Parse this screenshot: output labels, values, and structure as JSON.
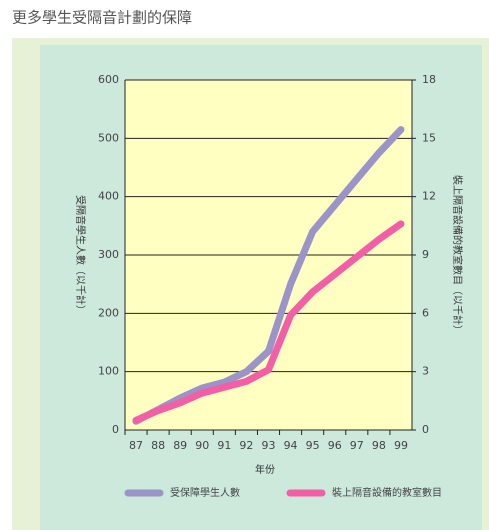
{
  "chart_data": {
    "type": "line",
    "title": "更多學生受隔音計劃的保障",
    "x_label": "年份",
    "y_label": "受隔音學生人數（以千計）",
    "y2_label": "裝上隔音設備的教室數目（以千計）",
    "categories": [
      "87",
      "88",
      "89",
      "90",
      "91",
      "92",
      "93",
      "94",
      "95",
      "96",
      "97",
      "98",
      "99"
    ],
    "series": [
      {
        "name": "受保障學生人數",
        "color": "#9a94c8",
        "values": [
          15,
          35,
          55,
          72,
          82,
          100,
          135,
          250,
          340,
          385,
          430,
          475,
          515
        ]
      },
      {
        "name": "裝上隔音設備的教室數目",
        "color": "#f35fa6",
        "axis": "y2",
        "values": [
          0.5,
          1.0,
          1.4,
          1.9,
          2.2,
          2.5,
          3.1,
          5.9,
          7.1,
          8.0,
          8.9,
          9.8,
          10.6
        ]
      }
    ],
    "ylim": [
      0,
      600
    ],
    "yticks": [
      0,
      100,
      200,
      300,
      400,
      500,
      600
    ],
    "y2lim": [
      0,
      18
    ],
    "y2ticks": [
      0,
      3,
      6,
      9,
      12,
      15,
      18
    ],
    "grid": true
  }
}
